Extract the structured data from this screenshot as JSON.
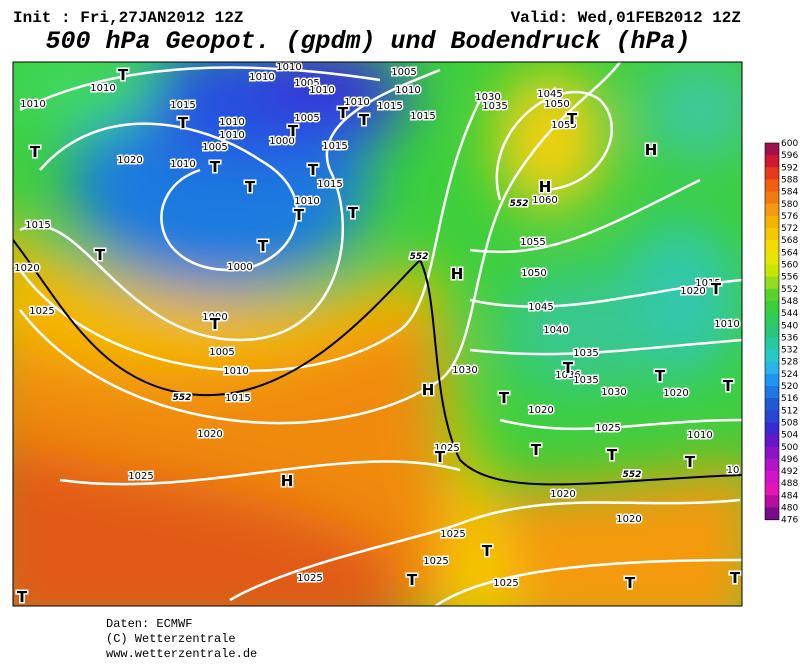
{
  "header": {
    "init": "Init : Fri,27JAN2012 12Z",
    "valid": "Valid: Wed,01FEB2012 12Z",
    "title": "500 hPa Geopot. (gpdm) und Bodendruck (hPa)"
  },
  "map": {
    "isobar_labels": [
      "1010",
      "1010",
      "1010",
      "1010",
      "1005",
      "1010",
      "1005",
      "1010",
      "1015",
      "1010",
      "1015",
      "1015",
      "1010",
      "1010",
      "1005",
      "1000",
      "1005",
      "1015",
      "1020",
      "1010",
      "1015",
      "1010",
      "1015",
      "1000",
      "1020",
      "1025",
      "1000",
      "1005",
      "1010",
      "1015",
      "1020",
      "1025",
      "1025",
      "1025",
      "1025",
      "1025",
      "1020",
      "1020",
      "1025",
      "1030",
      "1020",
      "1025",
      "1030",
      "1035",
      "1036",
      "1035",
      "1040",
      "1045",
      "1050",
      "1055",
      "1060",
      "1055",
      "1050",
      "1045",
      "1035",
      "1030",
      "1020",
      "1010",
      "1015",
      "1020",
      "1010",
      "10"
    ],
    "pressure_centers": [
      "T",
      "T",
      "T",
      "T",
      "T",
      "T",
      "T",
      "T",
      "T",
      "T",
      "T",
      "T",
      "T",
      "T",
      "T",
      "T",
      "H",
      "H",
      "H",
      "H",
      "T",
      "T",
      "T",
      "T",
      "T",
      "T",
      "T",
      "T",
      "T",
      "T",
      "T",
      "H",
      "T",
      "T"
    ],
    "contour_labels": [
      "552",
      "552",
      "552",
      "552"
    ]
  },
  "colorbar": {
    "ticks": [
      "600",
      "596",
      "592",
      "588",
      "584",
      "580",
      "576",
      "572",
      "568",
      "564",
      "560",
      "556",
      "552",
      "548",
      "544",
      "540",
      "536",
      "532",
      "528",
      "524",
      "520",
      "516",
      "512",
      "508",
      "504",
      "500",
      "496",
      "492",
      "488",
      "484",
      "480",
      "476"
    ]
  },
  "footer": {
    "source": "Daten: ECMWF",
    "copyright": "(C) Wetterzentrale",
    "url": "www.wetterzentrale.de"
  }
}
